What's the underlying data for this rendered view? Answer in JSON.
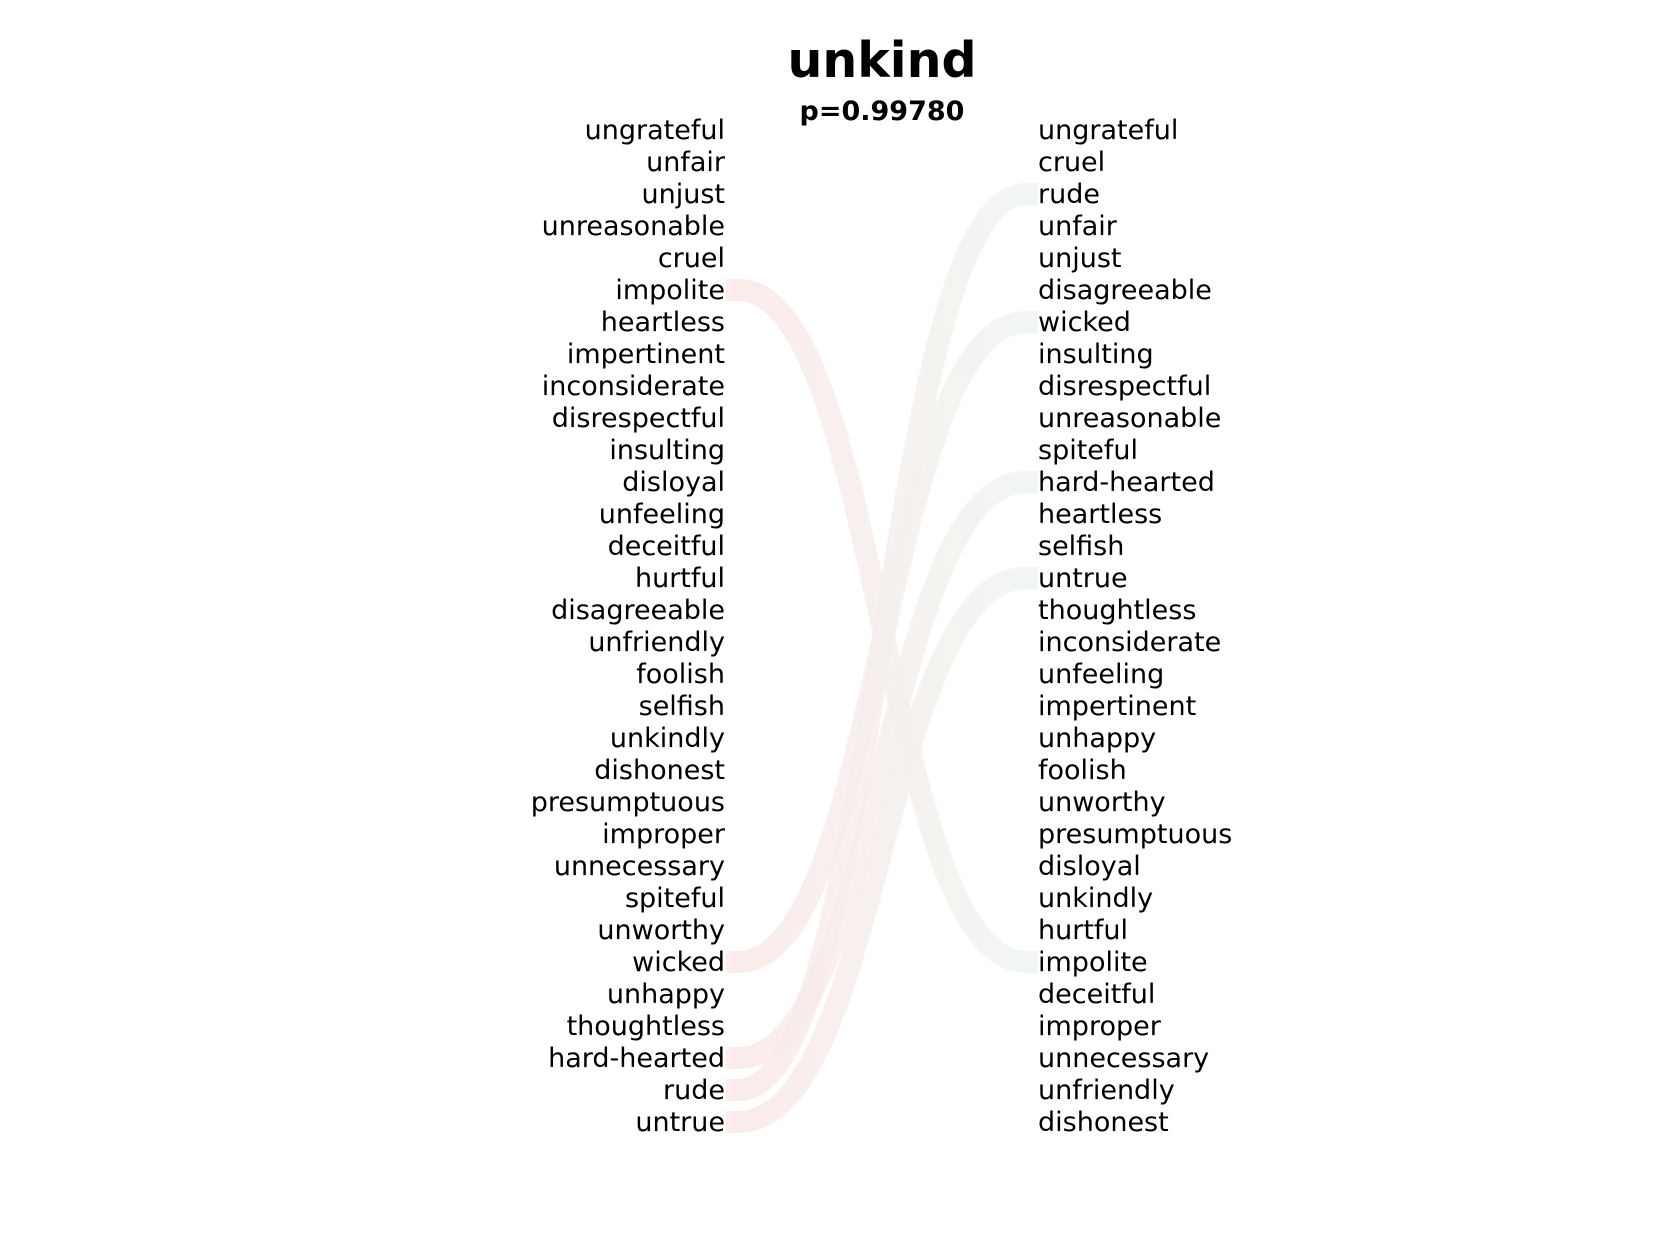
{
  "chart_data": {
    "type": "slopegraph",
    "title": "unkind",
    "subtitle": "p=0.99780",
    "left_ranking": [
      "ungrateful",
      "unfair",
      "unjust",
      "unreasonable",
      "cruel",
      "impolite",
      "heartless",
      "impertinent",
      "inconsiderate",
      "disrespectful",
      "insulting",
      "disloyal",
      "unfeeling",
      "deceitful",
      "hurtful",
      "disagreeable",
      "unfriendly",
      "foolish",
      "selfish",
      "unkindly",
      "dishonest",
      "presumptuous",
      "improper",
      "unnecessary",
      "spiteful",
      "unworthy",
      "wicked",
      "unhappy",
      "thoughtless",
      "hard-hearted",
      "rude",
      "untrue"
    ],
    "right_ranking": [
      "ungrateful",
      "cruel",
      "rude",
      "unfair",
      "unjust",
      "disagreeable",
      "wicked",
      "insulting",
      "disrespectful",
      "unreasonable",
      "spiteful",
      "hard-hearted",
      "heartless",
      "selfish",
      "untrue",
      "thoughtless",
      "inconsiderate",
      "unfeeling",
      "impertinent",
      "unhappy",
      "foolish",
      "unworthy",
      "presumptuous",
      "disloyal",
      "unkindly",
      "hurtful",
      "impolite",
      "deceitful",
      "improper",
      "unnecessary",
      "unfriendly",
      "dishonest"
    ],
    "highlighted_links": [
      {
        "word": "impolite",
        "from_rank": 6,
        "to_rank": 27,
        "direction": "down"
      },
      {
        "word": "wicked",
        "from_rank": 27,
        "to_rank": 7,
        "direction": "up"
      },
      {
        "word": "hard-hearted",
        "from_rank": 30,
        "to_rank": 12,
        "direction": "up"
      },
      {
        "word": "rude",
        "from_rank": 31,
        "to_rank": 3,
        "direction": "up"
      },
      {
        "word": "untrue",
        "from_rank": 32,
        "to_rank": 15,
        "direction": "up"
      }
    ],
    "colors": {
      "down_start": "#fbe8e8",
      "down_end": "#eef5f0",
      "up_start": "#fbe8e8",
      "up_end": "#eef5f0",
      "text": "#000000",
      "background": "#ffffff"
    }
  }
}
